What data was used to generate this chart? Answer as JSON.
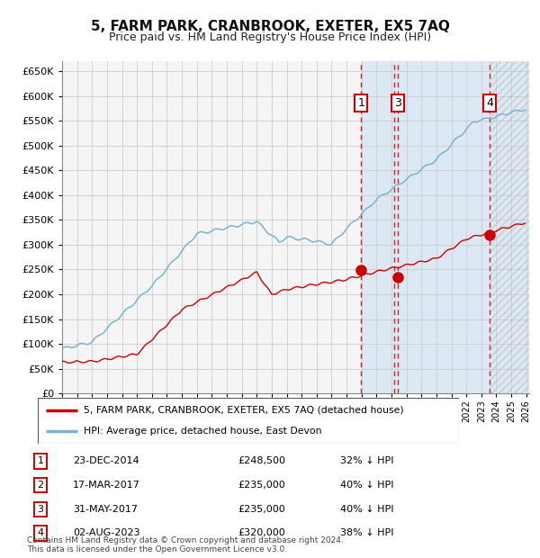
{
  "title": "5, FARM PARK, CRANBROOK, EXETER, EX5 7AQ",
  "subtitle": "Price paid vs. HM Land Registry's House Price Index (HPI)",
  "ylim": [
    0,
    670000
  ],
  "yticks": [
    0,
    50000,
    100000,
    150000,
    200000,
    250000,
    300000,
    350000,
    400000,
    450000,
    500000,
    550000,
    600000,
    650000
  ],
  "xlim_start": 1995.0,
  "xlim_end": 2026.2,
  "hpi_color": "#7ab3d4",
  "price_color": "#cc0000",
  "grid_color": "#cccccc",
  "bg_color": "#ffffff",
  "plot_bg_color": "#f5f5f5",
  "highlight_bg_color": "#dce9f5",
  "hatch_color": "#cccccc",
  "transactions": [
    {
      "label": "1",
      "date_num": 2014.98,
      "price": 248500,
      "show_marker": true,
      "show_label": true
    },
    {
      "label": "2",
      "date_num": 2017.21,
      "price": 235000,
      "show_marker": false,
      "show_label": false
    },
    {
      "label": "3",
      "date_num": 2017.42,
      "price": 235000,
      "show_marker": true,
      "show_label": true
    },
    {
      "label": "4",
      "date_num": 2023.58,
      "price": 320000,
      "show_marker": true,
      "show_label": true
    }
  ],
  "table_entries": [
    {
      "num": "1",
      "date": "23-DEC-2014",
      "price": "£248,500",
      "hpi": "32% ↓ HPI"
    },
    {
      "num": "2",
      "date": "17-MAR-2017",
      "price": "£235,000",
      "hpi": "40% ↓ HPI"
    },
    {
      "num": "3",
      "date": "31-MAY-2017",
      "price": "£235,000",
      "hpi": "40% ↓ HPI"
    },
    {
      "num": "4",
      "date": "02-AUG-2023",
      "price": "£320,000",
      "hpi": "38% ↓ HPI"
    }
  ],
  "legend_entries": [
    {
      "label": "5, FARM PARK, CRANBROOK, EXETER, EX5 7AQ (detached house)",
      "color": "#cc0000"
    },
    {
      "label": "HPI: Average price, detached house, East Devon",
      "color": "#7ab3d4"
    }
  ],
  "footer": "Contains HM Land Registry data © Crown copyright and database right 2024.\nThis data is licensed under the Open Government Licence v3.0."
}
